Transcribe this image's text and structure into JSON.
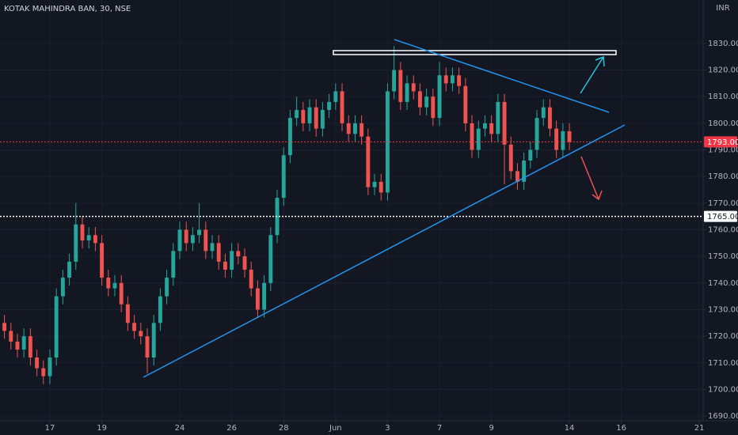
{
  "chart_data": {
    "type": "candlestick",
    "title": "KOTAK MAHINDRA BAN, 30, NSE",
    "currency": "INR",
    "up_color": "#26a69a",
    "down_color": "#ef5350",
    "grid": true,
    "x": [
      -1.75,
      -1.5,
      -1.25,
      -1,
      -0.75,
      -0.5,
      -0.25,
      0,
      0.25,
      0.5,
      0.75,
      1,
      1.25,
      1.5,
      1.75,
      2,
      2.25,
      2.5,
      2.75,
      3,
      3.25,
      3.5,
      3.75,
      4,
      4.25,
      4.5,
      4.75,
      5,
      5.25,
      5.5,
      5.75,
      6,
      6.25,
      6.5,
      6.75,
      7,
      7.25,
      7.5,
      7.75,
      8,
      8.25,
      8.5,
      8.75,
      9,
      9.25,
      9.5,
      9.75,
      10,
      10.25,
      10.5,
      10.75,
      11,
      11.25,
      11.5,
      11.75,
      12,
      12.25,
      12.5,
      12.75,
      13,
      13.25,
      13.5,
      13.75,
      14,
      14.25,
      14.5,
      14.75,
      15,
      15.25,
      15.5,
      15.75,
      16,
      16.25,
      16.5,
      16.75,
      17,
      17.25,
      17.5,
      17.75,
      18,
      18.25,
      18.5,
      18.75,
      19,
      19.25,
      19.5,
      19.75,
      20
    ],
    "open": [
      1725,
      1722,
      1718,
      1715,
      1720,
      1712,
      1708,
      1705,
      1712,
      1735,
      1742,
      1748,
      1762,
      1756,
      1758,
      1755,
      1742,
      1738,
      1740,
      1732,
      1725,
      1722,
      1720,
      1712,
      1725,
      1735,
      1742,
      1752,
      1760,
      1755,
      1758,
      1760,
      1752,
      1755,
      1748,
      1745,
      1752,
      1750,
      1745,
      1738,
      1730,
      1740,
      1758,
      1772,
      1788,
      1802,
      1805,
      1800,
      1806,
      1798,
      1805,
      1808,
      1812,
      1800,
      1796,
      1800,
      1795,
      1776,
      1778,
      1774,
      1812,
      1820,
      1808,
      1815,
      1812,
      1806,
      1810,
      1802,
      1818,
      1815,
      1818,
      1814,
      1800,
      1790,
      1798,
      1800,
      1796,
      1808,
      1792,
      1782,
      1778,
      1786,
      1790,
      1802,
      1806,
      1798,
      1790,
      1797
    ],
    "high": [
      1728,
      1725,
      1721,
      1723,
      1723,
      1715,
      1711,
      1715,
      1738,
      1745,
      1751,
      1770,
      1765,
      1761,
      1761,
      1758,
      1745,
      1743,
      1743,
      1735,
      1728,
      1725,
      1723,
      1728,
      1738,
      1745,
      1755,
      1763,
      1763,
      1761,
      1770,
      1763,
      1758,
      1758,
      1751,
      1755,
      1755,
      1753,
      1748,
      1741,
      1743,
      1761,
      1775,
      1791,
      1805,
      1810,
      1808,
      1809,
      1809,
      1808,
      1811,
      1815,
      1815,
      1803,
      1803,
      1803,
      1798,
      1781,
      1781,
      1815,
      1829,
      1823,
      1818,
      1818,
      1815,
      1813,
      1813,
      1823,
      1821,
      1821,
      1821,
      1817,
      1803,
      1801,
      1803,
      1803,
      1811,
      1811,
      1795,
      1785,
      1789,
      1793,
      1805,
      1809,
      1809,
      1801,
      1800,
      1800
    ],
    "low": [
      1719,
      1715,
      1712,
      1712,
      1709,
      1705,
      1702,
      1702,
      1709,
      1732,
      1739,
      1745,
      1753,
      1753,
      1752,
      1739,
      1735,
      1735,
      1729,
      1722,
      1719,
      1717,
      1706,
      1709,
      1722,
      1732,
      1739,
      1749,
      1752,
      1752,
      1755,
      1749,
      1749,
      1745,
      1742,
      1742,
      1747,
      1742,
      1735,
      1727,
      1727,
      1737,
      1755,
      1769,
      1785,
      1799,
      1797,
      1797,
      1795,
      1795,
      1802,
      1805,
      1797,
      1793,
      1793,
      1792,
      1773,
      1773,
      1771,
      1771,
      1809,
      1805,
      1805,
      1809,
      1803,
      1803,
      1799,
      1799,
      1812,
      1812,
      1811,
      1797,
      1787,
      1787,
      1795,
      1793,
      1793,
      1777,
      1779,
      1775,
      1775,
      1783,
      1787,
      1799,
      1795,
      1787,
      1787,
      1790
    ],
    "close": [
      1722,
      1718,
      1715,
      1720,
      1712,
      1708,
      1705,
      1712,
      1735,
      1742,
      1748,
      1762,
      1756,
      1758,
      1755,
      1742,
      1738,
      1740,
      1732,
      1725,
      1722,
      1720,
      1712,
      1725,
      1735,
      1742,
      1752,
      1760,
      1755,
      1758,
      1760,
      1752,
      1755,
      1748,
      1745,
      1752,
      1750,
      1745,
      1738,
      1730,
      1740,
      1758,
      1772,
      1788,
      1802,
      1805,
      1800,
      1806,
      1798,
      1805,
      1808,
      1812,
      1800,
      1796,
      1800,
      1795,
      1776,
      1778,
      1774,
      1812,
      1820,
      1808,
      1815,
      1812,
      1806,
      1810,
      1802,
      1818,
      1815,
      1818,
      1814,
      1800,
      1790,
      1798,
      1800,
      1796,
      1808,
      1792,
      1782,
      1778,
      1786,
      1790,
      1802,
      1806,
      1798,
      1790,
      1797,
      1793
    ],
    "xlim": [
      -1.92,
      25.15
    ],
    "xticks": [
      {
        "value": 0,
        "label": "17"
      },
      {
        "value": 2,
        "label": "19"
      },
      {
        "value": 5,
        "label": "24"
      },
      {
        "value": 7,
        "label": "26"
      },
      {
        "value": 9,
        "label": "28"
      },
      {
        "value": 11,
        "label": "Jun"
      },
      {
        "value": 13,
        "label": "3"
      },
      {
        "value": 15,
        "label": "7"
      },
      {
        "value": 17,
        "label": "9"
      },
      {
        "value": 20,
        "label": "14"
      },
      {
        "value": 22,
        "label": "16"
      },
      {
        "value": 25,
        "label": "21"
      }
    ],
    "ylim": [
      1688.25,
      1846.3
    ],
    "yticks": [
      {
        "value": 1690,
        "label": "1690.00"
      },
      {
        "value": 1700,
        "label": "1700.00"
      },
      {
        "value": 1710,
        "label": "1710.00"
      },
      {
        "value": 1720,
        "label": "1720.00"
      },
      {
        "value": 1730,
        "label": "1730.00"
      },
      {
        "value": 1740,
        "label": "1740.00"
      },
      {
        "value": 1750,
        "label": "1750.00"
      },
      {
        "value": 1760,
        "label": "1760.00"
      },
      {
        "value": 1770,
        "label": "1770.00"
      },
      {
        "value": 1780,
        "label": "1780.00"
      },
      {
        "value": 1790,
        "label": "1790.00"
      },
      {
        "value": 1800,
        "label": "1800.00"
      },
      {
        "value": 1810,
        "label": "1810.00"
      },
      {
        "value": 1820,
        "label": "1820.00"
      },
      {
        "value": 1830,
        "label": "1830.00"
      }
    ],
    "price_lines": [
      {
        "value": 1793,
        "label": "1793.00",
        "color": "#f23645",
        "style": "dotted"
      },
      {
        "value": 1765,
        "label": "1765.00",
        "color": "#ffffff",
        "style": "dotted"
      }
    ]
  }
}
